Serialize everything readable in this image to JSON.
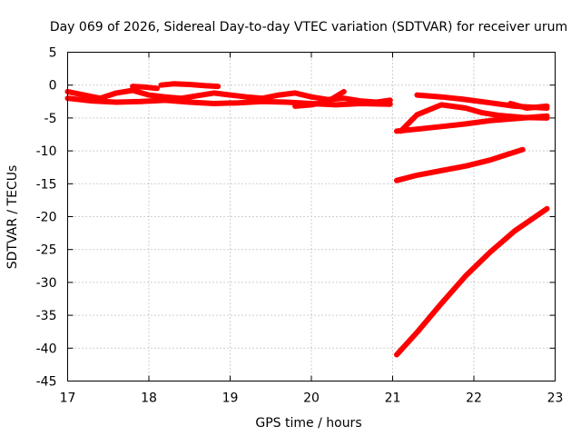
{
  "chart_data": {
    "type": "line",
    "title": "Day 069 of 2026, Sidereal Day-to-day VTEC variation (SDTVAR) for receiver urum",
    "xlabel": "GPS time / hours",
    "ylabel": "SDTVAR / TECUs",
    "xlim": [
      17,
      23
    ],
    "ylim": [
      -45,
      5
    ],
    "xticks": [
      17,
      18,
      19,
      20,
      21,
      22,
      23
    ],
    "yticks": [
      5,
      0,
      -5,
      -10,
      -15,
      -20,
      -25,
      -30,
      -35,
      -40,
      -45
    ],
    "grid": true,
    "legend": "none",
    "color": "#ff0000",
    "series": [
      {
        "x": [
          17.0,
          17.2,
          17.4,
          17.6,
          17.8,
          18.0,
          18.2,
          18.4,
          18.6,
          18.8,
          19.0,
          19.2,
          19.4,
          19.6,
          19.8,
          20.0,
          20.2,
          20.4,
          20.6,
          20.8,
          20.97
        ],
        "y": [
          -1.0,
          -1.5,
          -2.0,
          -1.2,
          -0.8,
          -1.5,
          -1.8,
          -2.0,
          -1.6,
          -1.2,
          -1.5,
          -1.8,
          -2.0,
          -1.5,
          -1.2,
          -1.8,
          -2.2,
          -2.0,
          -2.4,
          -2.6,
          -2.3
        ]
      },
      {
        "x": [
          17.0,
          17.3,
          17.6,
          17.9,
          18.2,
          18.5,
          18.8,
          19.1,
          19.4,
          19.7,
          20.0,
          20.3,
          20.6,
          20.97
        ],
        "y": [
          -2.0,
          -2.4,
          -2.6,
          -2.5,
          -2.3,
          -2.6,
          -2.8,
          -2.7,
          -2.5,
          -2.6,
          -2.8,
          -3.0,
          -2.8,
          -2.9
        ]
      },
      {
        "x": [
          18.15,
          18.3,
          18.5,
          18.7,
          18.85
        ],
        "y": [
          0.0,
          0.2,
          0.1,
          -0.1,
          -0.2
        ]
      },
      {
        "x": [
          17.8,
          17.95,
          18.1
        ],
        "y": [
          -0.2,
          -0.3,
          -0.5
        ]
      },
      {
        "x": [
          19.8,
          20.0,
          20.2,
          20.4
        ],
        "y": [
          -3.2,
          -3.0,
          -2.5,
          -1.0
        ]
      },
      {
        "x": [
          21.05,
          21.3,
          21.6,
          21.9,
          22.2,
          22.5,
          22.9
        ],
        "y": [
          -7.0,
          -6.7,
          -6.3,
          -5.9,
          -5.4,
          -5.1,
          -4.7
        ]
      },
      {
        "x": [
          21.1,
          21.3,
          21.6,
          21.9,
          22.1,
          22.3,
          22.6,
          22.9
        ],
        "y": [
          -7.0,
          -4.5,
          -3.0,
          -3.5,
          -4.2,
          -4.6,
          -4.9,
          -5.0
        ]
      },
      {
        "x": [
          21.3,
          21.6,
          21.9,
          22.2,
          22.5,
          22.9
        ],
        "y": [
          -1.5,
          -1.8,
          -2.2,
          -2.7,
          -3.2,
          -3.5
        ]
      },
      {
        "x": [
          22.45,
          22.65,
          22.9
        ],
        "y": [
          -2.8,
          -3.5,
          -3.2
        ]
      },
      {
        "x": [
          21.05,
          21.3,
          21.6,
          21.9,
          22.2,
          22.4,
          22.6
        ],
        "y": [
          -14.5,
          -13.7,
          -13.0,
          -12.3,
          -11.4,
          -10.6,
          -9.8
        ]
      },
      {
        "x": [
          21.05,
          21.3,
          21.6,
          21.9,
          22.2,
          22.5,
          22.9
        ],
        "y": [
          -41.0,
          -37.6,
          -33.2,
          -29.0,
          -25.4,
          -22.2,
          -18.8
        ]
      }
    ]
  }
}
